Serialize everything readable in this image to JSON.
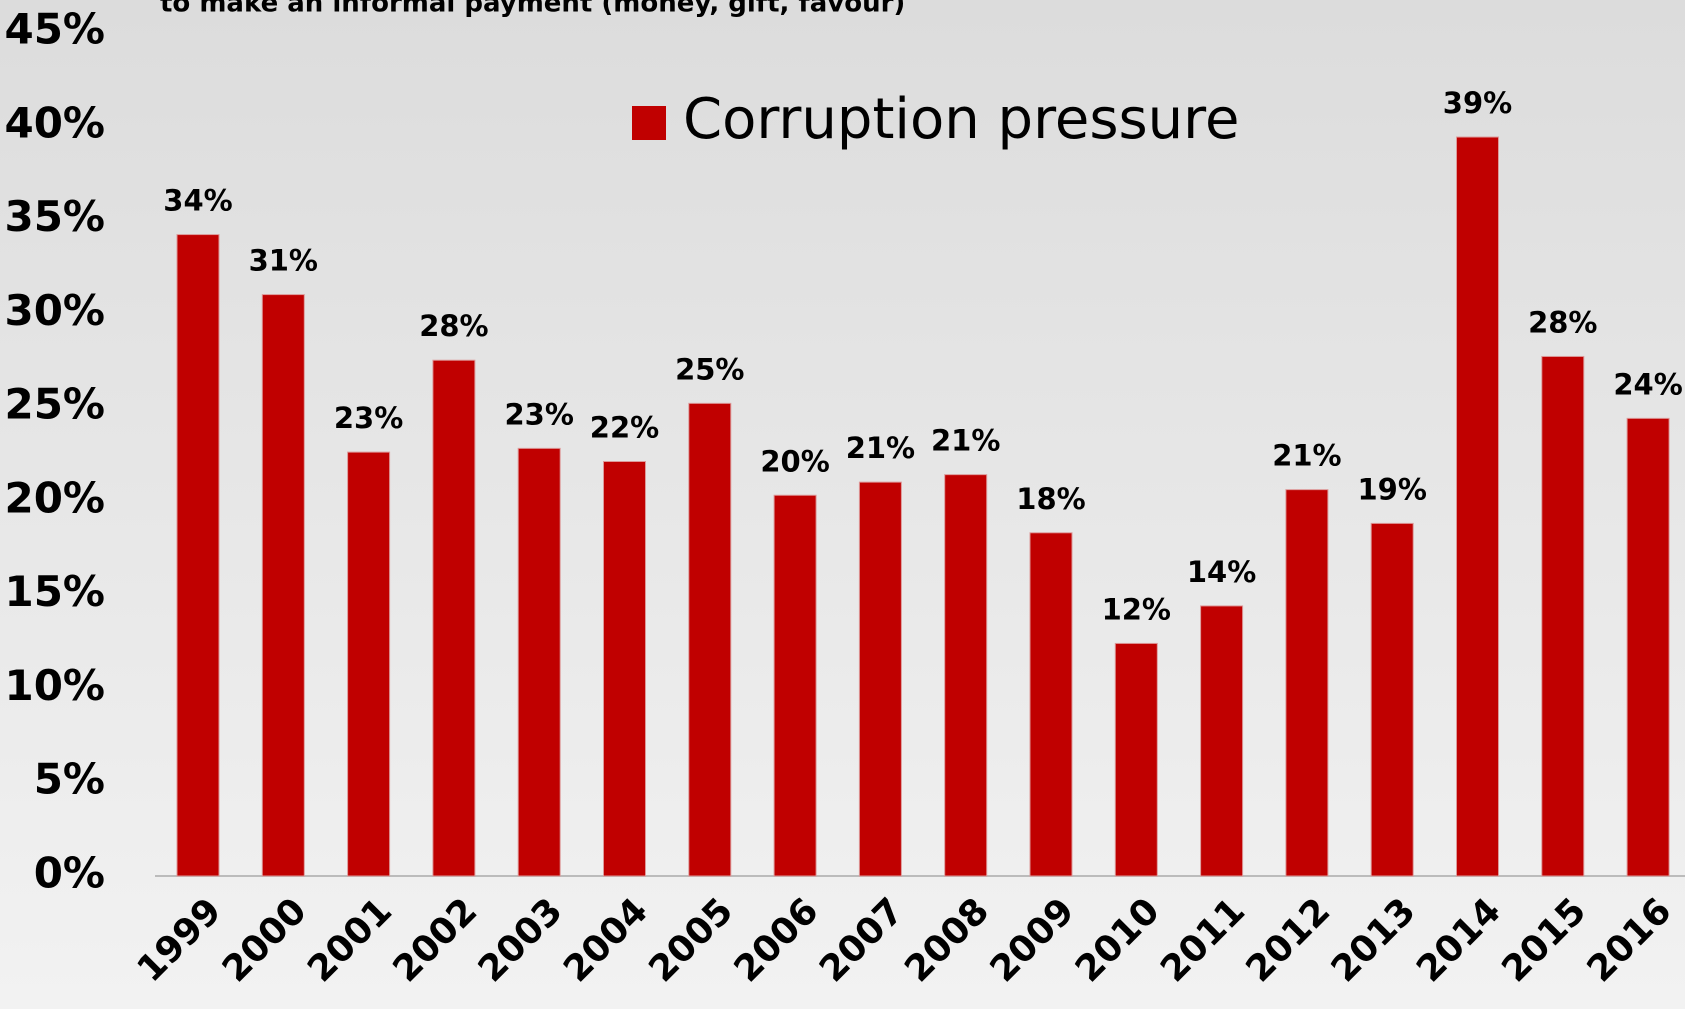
{
  "chart_data": {
    "type": "bar",
    "title": "to make an informal payment (money, gift, favour)",
    "categories": [
      "1999",
      "2000",
      "2001",
      "2002",
      "2003",
      "2004",
      "2005",
      "2006",
      "2007",
      "2008",
      "2009",
      "2010",
      "2011",
      "2012",
      "2013",
      "2014",
      "2015",
      "2016"
    ],
    "series": [
      {
        "name": "Corruption pressure",
        "color": "#c00000",
        "values": [
          34.2,
          31.0,
          22.6,
          27.5,
          22.8,
          22.1,
          25.2,
          20.3,
          21.0,
          21.4,
          18.3,
          12.4,
          14.4,
          20.6,
          18.8,
          39.4,
          27.7,
          24.4
        ],
        "value_labels": [
          "34%",
          "31%",
          "23%",
          "28%",
          "23%",
          "22%",
          "25%",
          "20%",
          "21%",
          "21%",
          "18%",
          "12%",
          "14%",
          "21%",
          "19%",
          "39%",
          "28%",
          "24%"
        ]
      }
    ],
    "ylim": [
      0,
      45
    ],
    "yticks": [
      {
        "value": 0,
        "label": "0%"
      },
      {
        "value": 5,
        "label": "5%"
      },
      {
        "value": 10,
        "label": "10%"
      },
      {
        "value": 15,
        "label": "15%"
      },
      {
        "value": 20,
        "label": "20%"
      },
      {
        "value": 25,
        "label": "25%"
      },
      {
        "value": 30,
        "label": "30%"
      },
      {
        "value": 35,
        "label": "35%"
      },
      {
        "value": 40,
        "label": "40%"
      },
      {
        "value": 45,
        "label": "45%"
      }
    ],
    "grid": false,
    "legend": "top"
  }
}
